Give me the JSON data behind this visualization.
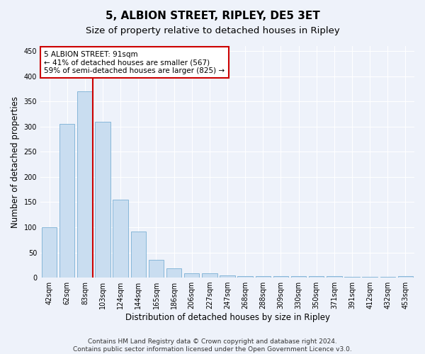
{
  "title": "5, ALBION STREET, RIPLEY, DE5 3ET",
  "subtitle": "Size of property relative to detached houses in Ripley",
  "xlabel": "Distribution of detached houses by size in Ripley",
  "ylabel": "Number of detached properties",
  "categories": [
    "42sqm",
    "62sqm",
    "83sqm",
    "103sqm",
    "124sqm",
    "144sqm",
    "165sqm",
    "186sqm",
    "206sqm",
    "227sqm",
    "247sqm",
    "268sqm",
    "288sqm",
    "309sqm",
    "330sqm",
    "350sqm",
    "371sqm",
    "391sqm",
    "412sqm",
    "432sqm",
    "453sqm"
  ],
  "values": [
    100,
    305,
    370,
    310,
    155,
    92,
    35,
    18,
    8,
    8,
    5,
    3,
    3,
    3,
    3,
    3,
    3,
    1,
    1,
    1,
    3
  ],
  "bar_color": "#c9ddf0",
  "bar_edge_color": "#7aafd4",
  "marker_line_index": 2,
  "marker_label": "5 ALBION STREET: 91sqm",
  "annotation_line1": "← 41% of detached houses are smaller (567)",
  "annotation_line2": "59% of semi-detached houses are larger (825) →",
  "annotation_box_color": "#ffffff",
  "annotation_box_edge": "#cc0000",
  "marker_line_color": "#cc0000",
  "ylim": [
    0,
    460
  ],
  "yticks": [
    0,
    50,
    100,
    150,
    200,
    250,
    300,
    350,
    400,
    450
  ],
  "background_color": "#eef2fa",
  "grid_color": "#ffffff",
  "footer_line1": "Contains HM Land Registry data © Crown copyright and database right 2024.",
  "footer_line2": "Contains public sector information licensed under the Open Government Licence v3.0.",
  "title_fontsize": 11,
  "subtitle_fontsize": 9.5,
  "axis_label_fontsize": 8.5,
  "tick_fontsize": 7,
  "footer_fontsize": 6.5,
  "annot_fontsize": 7.5
}
